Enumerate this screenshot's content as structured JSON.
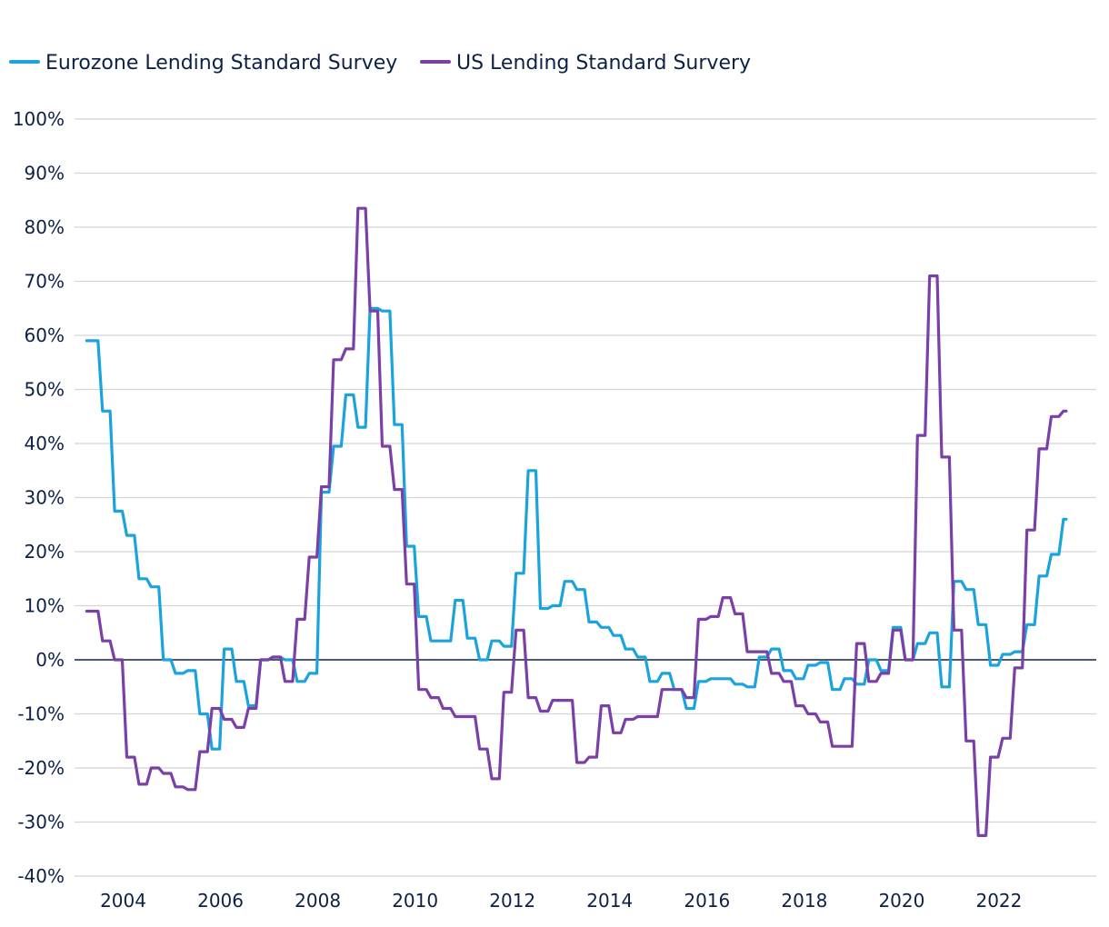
{
  "chart_data": {
    "type": "line",
    "title": "",
    "xlabel": "",
    "ylabel": "",
    "xlim": [
      2003.0,
      2024.0
    ],
    "ylim": [
      -40,
      100
    ],
    "y_ticks": [
      100,
      90,
      80,
      70,
      60,
      50,
      40,
      30,
      20,
      10,
      0,
      -10,
      -20,
      -30,
      -40
    ],
    "y_tick_labels": [
      "100%",
      "90%",
      "80%",
      "70%",
      "60%",
      "50%",
      "40%",
      "30%",
      "20%",
      "10%",
      "0%",
      "-10%",
      "-20%",
      "-30%",
      "-40%"
    ],
    "x_ticks": [
      2004,
      2006,
      2008,
      2010,
      2012,
      2014,
      2016,
      2018,
      2020,
      2022
    ],
    "x_tick_labels": [
      "2004",
      "2006",
      "2008",
      "2010",
      "2012",
      "2014",
      "2016",
      "2018",
      "2020",
      "2022"
    ],
    "grid": true,
    "legend_position": "top-left",
    "series": [
      {
        "name": "Eurozone Lending Standard Survey",
        "color": "#1aa3dd",
        "step": true,
        "x": [
          2003.25,
          2003.5,
          2003.75,
          2004.0,
          2004.25,
          2004.5,
          2004.75,
          2005.0,
          2005.25,
          2005.5,
          2005.75,
          2006.0,
          2006.25,
          2006.5,
          2006.75,
          2007.0,
          2007.25,
          2007.5,
          2007.75,
          2008.0,
          2008.25,
          2008.5,
          2008.75,
          2009.0,
          2009.25,
          2009.5,
          2009.75,
          2010.0,
          2010.25,
          2010.5,
          2010.75,
          2011.0,
          2011.25,
          2011.5,
          2011.75,
          2012.0,
          2012.25,
          2012.5,
          2012.75,
          2013.0,
          2013.25,
          2013.5,
          2013.75,
          2014.0,
          2014.25,
          2014.5,
          2014.75,
          2015.0,
          2015.25,
          2015.5,
          2015.75,
          2016.0,
          2016.25,
          2016.5,
          2016.75,
          2017.0,
          2017.25,
          2017.5,
          2017.75,
          2018.0,
          2018.25,
          2018.5,
          2018.75,
          2019.0,
          2019.25,
          2019.5,
          2019.75,
          2020.0,
          2020.25,
          2020.5,
          2020.75,
          2021.0,
          2021.25,
          2021.5,
          2021.75,
          2022.0,
          2022.25,
          2022.5,
          2022.75,
          2023.0,
          2023.25
        ],
        "values": [
          59,
          46,
          27.5,
          23,
          15,
          13.5,
          0,
          -2.5,
          -2,
          -10,
          -16.5,
          2,
          -4,
          -8.5,
          0,
          0.5,
          0,
          -4,
          -2.5,
          31,
          39.5,
          49,
          43,
          65,
          64.5,
          43.5,
          21,
          8,
          3.5,
          3.5,
          11,
          4,
          0,
          3.5,
          2.5,
          16,
          35,
          9.5,
          10,
          14.5,
          13,
          7,
          6,
          4.5,
          2,
          0.5,
          -4,
          -2.5,
          -5.5,
          -9,
          -4,
          -3.5,
          -3.5,
          -4.5,
          -5,
          0.5,
          2,
          -2,
          -3.5,
          -1,
          -0.5,
          -5.5,
          -3.5,
          -4.5,
          0,
          -2,
          6,
          0,
          3,
          5,
          -5,
          14.5,
          13,
          6.5,
          -1,
          1,
          1.5,
          6.5,
          15.5,
          19.5,
          26
        ]
      },
      {
        "name": "US Lending Standard Survery",
        "color": "#7b3fa8",
        "step": true,
        "x": [
          2003.25,
          2003.5,
          2003.75,
          2004.0,
          2004.25,
          2004.5,
          2004.75,
          2005.0,
          2005.25,
          2005.5,
          2005.75,
          2006.0,
          2006.25,
          2006.5,
          2006.75,
          2007.0,
          2007.25,
          2007.5,
          2007.75,
          2008.0,
          2008.25,
          2008.5,
          2008.75,
          2009.0,
          2009.25,
          2009.5,
          2009.75,
          2010.0,
          2010.25,
          2010.5,
          2010.75,
          2011.0,
          2011.25,
          2011.5,
          2011.75,
          2012.0,
          2012.25,
          2012.5,
          2012.75,
          2013.0,
          2013.25,
          2013.5,
          2013.75,
          2014.0,
          2014.25,
          2014.5,
          2014.75,
          2015.0,
          2015.25,
          2015.5,
          2015.75,
          2016.0,
          2016.25,
          2016.5,
          2016.75,
          2017.0,
          2017.25,
          2017.5,
          2017.75,
          2018.0,
          2018.25,
          2018.5,
          2018.75,
          2019.0,
          2019.25,
          2019.5,
          2019.75,
          2020.0,
          2020.25,
          2020.5,
          2020.75,
          2021.0,
          2021.25,
          2021.5,
          2021.75,
          2022.0,
          2022.25,
          2022.5,
          2022.75,
          2023.0,
          2023.25
        ],
        "values": [
          9,
          3.5,
          0,
          -18,
          -23,
          -20,
          -21,
          -23.5,
          -24,
          -17,
          -9,
          -11,
          -12.5,
          -9,
          0,
          0.5,
          -4,
          7.5,
          19,
          32,
          55.5,
          57.5,
          83.5,
          64.5,
          39.5,
          31.5,
          14,
          -5.5,
          -7,
          -9,
          -10.5,
          -10.5,
          -16.5,
          -22,
          -6,
          5.5,
          -7,
          -9.5,
          -7.5,
          -7.5,
          -19,
          -18,
          -8.5,
          -13.5,
          -11,
          -10.5,
          -10.5,
          -5.5,
          -5.5,
          -7,
          7.5,
          8,
          11.5,
          8.5,
          1.5,
          1.5,
          -2.5,
          -4,
          -8.5,
          -10,
          -11.5,
          -16,
          -16,
          3,
          -4,
          -2.5,
          5.5,
          0,
          41.5,
          71,
          37.5,
          5.5,
          -15,
          -32.5,
          -18,
          -14.5,
          -1.5,
          24,
          39,
          45,
          46
        ]
      }
    ]
  }
}
